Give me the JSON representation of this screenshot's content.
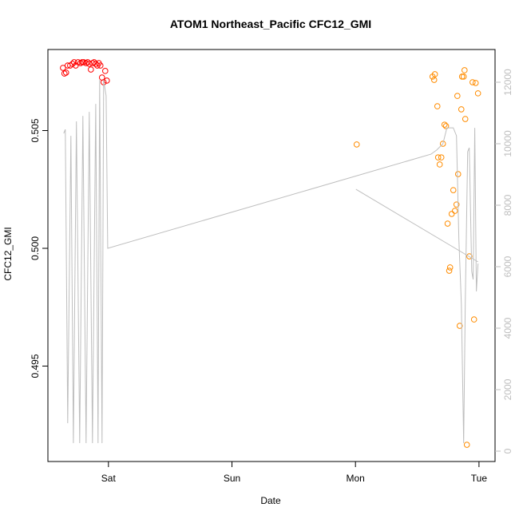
{
  "chart_data": {
    "type": "scatter",
    "title": "ATOM1 Northeast_Pacific CFC12_GMI",
    "x_label": "Date",
    "y_label": "CFC12_GMI",
    "xlim": [
      -0.49,
      3.13
    ],
    "xticks": [
      {
        "value": 0,
        "label": "Sat"
      },
      {
        "value": 1,
        "label": "Sun"
      },
      {
        "value": 2,
        "label": "Mon"
      },
      {
        "value": 3,
        "label": "Tue"
      }
    ],
    "ylim": [
      0.49095,
      0.50844
    ],
    "yticks": [
      0.495,
      {
        "value": 0.5,
        "label": "0.500"
      },
      0.505
    ],
    "y2lim": [
      -338,
      13065
    ],
    "y2ticks": [
      0,
      2000,
      4000,
      6000,
      8000,
      10000,
      12000
    ],
    "series": [
      {
        "color": "#ff0000",
        "x": [
          -0.368,
          -0.356,
          -0.343,
          -0.33,
          -0.31,
          -0.291,
          -0.278,
          -0.265,
          -0.246,
          -0.226,
          -0.213,
          -0.2,
          -0.181,
          -0.168,
          -0.155,
          -0.142,
          -0.129,
          -0.116,
          -0.103,
          -0.09,
          -0.078,
          -0.065,
          -0.052,
          -0.039,
          -0.026,
          -0.013
        ],
        "values": [
          0.50766,
          0.50742,
          0.50746,
          0.50776,
          0.50776,
          0.50783,
          0.5079,
          0.50776,
          0.5079,
          0.50786,
          0.5079,
          0.5079,
          0.50786,
          0.5079,
          0.50783,
          0.50759,
          0.50786,
          0.5079,
          0.50783,
          0.50776,
          0.50786,
          0.50776,
          0.50725,
          0.50705,
          0.50753,
          0.50712
        ]
      },
      {
        "color": "#ff8c00",
        "x": [
          2.01,
          2.624,
          2.643,
          2.637,
          2.663,
          2.669,
          2.682,
          2.695,
          2.708,
          2.721,
          2.733,
          2.746,
          2.759,
          2.766,
          2.779,
          2.792,
          2.805,
          2.818,
          2.825,
          2.831,
          2.844,
          2.857,
          2.863,
          2.876,
          2.883,
          2.889,
          2.902,
          2.922,
          2.948,
          2.96,
          2.973,
          2.992
        ],
        "values": [
          0.50441,
          0.50729,
          0.50739,
          0.50715,
          0.50603,
          0.50386,
          0.50356,
          0.50386,
          0.50444,
          0.50525,
          0.50519,
          0.50105,
          0.49905,
          0.49919,
          0.50146,
          0.50247,
          0.50159,
          0.50186,
          0.50647,
          0.50315,
          0.49671,
          0.5059,
          0.50729,
          0.50729,
          0.50756,
          0.50549,
          0.49166,
          0.49966,
          0.50705,
          0.49698,
          0.50702,
          0.50658
        ]
      },
      {
        "type": "line",
        "axis": "y2",
        "color": "#bebebe",
        "x": [
          -0.362,
          -0.349,
          -0.33,
          -0.304,
          -0.284,
          -0.259,
          -0.233,
          -0.207,
          -0.181,
          -0.155,
          -0.129,
          -0.103,
          -0.084,
          -0.071,
          -0.052,
          -0.039,
          -0.019,
          -0.006,
          2.611,
          2.657,
          2.708,
          2.74,
          2.792,
          2.818,
          2.837,
          2.857,
          2.876,
          2.889,
          2.908,
          2.921,
          2.941,
          2.953,
          2.966,
          2.979,
          2.992,
          null,
          2.004,
          2.993
        ],
        "values": [
          10336,
          10466,
          909,
          10258,
          260,
          10726,
          260,
          10907,
          260,
          11037,
          260,
          11297,
          260,
          12076,
          260,
          12076,
          11557,
          6596,
          9661,
          9791,
          9998,
          10518,
          10518,
          10258,
          6882,
          4804,
          260,
          4804,
          9739,
          9869,
          5843,
          5584,
          10518,
          5194,
          6103,
          null,
          8518,
          6155
        ]
      }
    ]
  }
}
